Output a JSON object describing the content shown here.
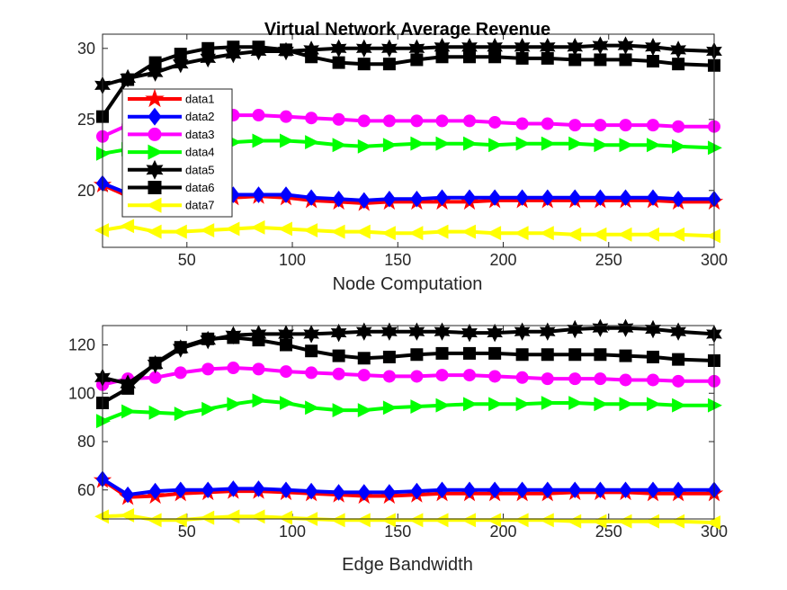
{
  "chart_data": [
    {
      "type": "line",
      "title": "Virtual Network Average Revenue",
      "xlabel": "Node Computation",
      "ylabel": "",
      "xlim": [
        10,
        300
      ],
      "ylim": [
        16,
        31
      ],
      "xticks": [
        50,
        100,
        150,
        200,
        250,
        300
      ],
      "yticks": [
        20,
        25,
        30
      ],
      "legend": "top-left",
      "x": [
        10,
        22,
        35,
        47,
        60,
        72,
        84,
        97,
        109,
        122,
        134,
        146,
        159,
        171,
        184,
        196,
        209,
        221,
        234,
        246,
        258,
        271,
        283,
        300
      ],
      "series": [
        {
          "name": "data1",
          "color": "#ff0000",
          "marker": "star",
          "values": [
            20.4,
            19.6,
            19.4,
            19.4,
            19.4,
            19.5,
            19.6,
            19.5,
            19.3,
            19.2,
            19.1,
            19.2,
            19.2,
            19.2,
            19.2,
            19.3,
            19.3,
            19.3,
            19.3,
            19.3,
            19.3,
            19.3,
            19.2,
            19.2
          ]
        },
        {
          "name": "data2",
          "color": "#0000ff",
          "marker": "diamond",
          "values": [
            20.5,
            19.8,
            19.6,
            19.6,
            19.6,
            19.7,
            19.7,
            19.7,
            19.5,
            19.4,
            19.3,
            19.4,
            19.4,
            19.5,
            19.5,
            19.5,
            19.5,
            19.5,
            19.5,
            19.5,
            19.5,
            19.5,
            19.4,
            19.4
          ]
        },
        {
          "name": "data3",
          "color": "#ff00ff",
          "marker": "circle",
          "values": [
            23.8,
            24.6,
            25.0,
            25.2,
            25.3,
            25.3,
            25.3,
            25.2,
            25.1,
            25.0,
            24.9,
            24.9,
            24.9,
            24.9,
            24.9,
            24.8,
            24.7,
            24.7,
            24.6,
            24.6,
            24.6,
            24.6,
            24.5,
            24.5
          ]
        },
        {
          "name": "data4",
          "color": "#00ff00",
          "marker": "triangle-right",
          "values": [
            22.6,
            22.9,
            23.1,
            23.2,
            23.3,
            23.4,
            23.5,
            23.5,
            23.4,
            23.2,
            23.1,
            23.2,
            23.3,
            23.3,
            23.3,
            23.2,
            23.3,
            23.3,
            23.3,
            23.2,
            23.2,
            23.2,
            23.1,
            23.0
          ]
        },
        {
          "name": "data5",
          "color": "#000000",
          "marker": "hexagram",
          "values": [
            27.4,
            27.9,
            28.3,
            28.9,
            29.3,
            29.6,
            29.8,
            29.8,
            29.9,
            30.0,
            30.0,
            30.0,
            30.0,
            30.1,
            30.1,
            30.1,
            30.1,
            30.1,
            30.1,
            30.2,
            30.2,
            30.1,
            29.9,
            29.8
          ]
        },
        {
          "name": "data6",
          "color": "#000000",
          "marker": "square",
          "values": [
            25.2,
            27.8,
            29.0,
            29.6,
            30.0,
            30.1,
            30.1,
            29.9,
            29.4,
            29.0,
            28.9,
            28.9,
            29.2,
            29.4,
            29.4,
            29.4,
            29.3,
            29.3,
            29.2,
            29.2,
            29.2,
            29.1,
            28.9,
            28.8
          ]
        },
        {
          "name": "data7",
          "color": "#ffff00",
          "marker": "triangle-left",
          "values": [
            17.2,
            17.5,
            17.1,
            17.1,
            17.2,
            17.3,
            17.4,
            17.3,
            17.2,
            17.1,
            17.1,
            17.0,
            17.0,
            17.1,
            17.1,
            17.0,
            17.0,
            17.0,
            16.9,
            16.9,
            16.9,
            16.9,
            16.9,
            16.8
          ]
        }
      ]
    },
    {
      "type": "line",
      "title": "",
      "xlabel": "Edge Bandwidth",
      "ylabel": "",
      "xlim": [
        10,
        300
      ],
      "ylim": [
        48,
        128
      ],
      "xticks": [
        50,
        100,
        150,
        200,
        250,
        300
      ],
      "yticks": [
        60,
        80,
        100,
        120
      ],
      "legend": "none",
      "x": [
        10,
        22,
        35,
        47,
        60,
        72,
        84,
        97,
        109,
        122,
        134,
        146,
        159,
        171,
        184,
        196,
        209,
        221,
        234,
        246,
        258,
        271,
        283,
        300
      ],
      "series": [
        {
          "name": "data1",
          "color": "#ff0000",
          "marker": "star",
          "values": [
            64,
            57,
            57.5,
            58.5,
            59,
            59.5,
            59.5,
            59,
            58.5,
            58,
            57.5,
            57.5,
            58,
            58.5,
            58.5,
            58.5,
            58.5,
            58.5,
            59,
            59,
            59,
            58.5,
            58.5,
            58.5
          ]
        },
        {
          "name": "data2",
          "color": "#0000ff",
          "marker": "diamond",
          "values": [
            64.5,
            58,
            59.5,
            60,
            60,
            60.5,
            60.5,
            60,
            59.5,
            59,
            59,
            59,
            59.5,
            60,
            60,
            60,
            60,
            60,
            60,
            60,
            60,
            60,
            60,
            60
          ]
        },
        {
          "name": "data3",
          "color": "#ff00ff",
          "marker": "circle",
          "values": [
            103.5,
            106,
            106.5,
            108.5,
            110,
            110.5,
            110,
            109,
            108.5,
            108,
            107.5,
            107,
            107,
            107.5,
            107.5,
            107,
            106.5,
            106,
            106,
            106,
            105.5,
            105.5,
            105,
            105
          ]
        },
        {
          "name": "data4",
          "color": "#00ff00",
          "marker": "triangle-right",
          "values": [
            88.5,
            92.5,
            92,
            91.5,
            93.5,
            95.5,
            97,
            96,
            94,
            93,
            93,
            94,
            94.5,
            95,
            95.5,
            95.5,
            95.5,
            96,
            96,
            95.5,
            95.5,
            95.5,
            95,
            95
          ]
        },
        {
          "name": "data5",
          "color": "#000000",
          "marker": "hexagram",
          "values": [
            106.5,
            104,
            112,
            118.5,
            122,
            124,
            124.5,
            124.5,
            124.5,
            125,
            125.5,
            125.5,
            125.5,
            125.5,
            125,
            125,
            125.5,
            125.5,
            126.5,
            127,
            127,
            126.5,
            125.5,
            124.5
          ]
        },
        {
          "name": "data6",
          "color": "#000000",
          "marker": "square",
          "values": [
            96,
            102,
            112.5,
            119,
            122.5,
            123,
            122,
            120,
            117.5,
            115.5,
            114.5,
            115,
            116,
            116.5,
            116.5,
            116.5,
            116,
            116,
            116,
            116,
            115.5,
            115,
            114,
            113.5
          ]
        },
        {
          "name": "data7",
          "color": "#ffff00",
          "marker": "triangle-left",
          "values": [
            49,
            49.5,
            47.5,
            47.5,
            48.5,
            49,
            49,
            48.5,
            48,
            47.5,
            47.5,
            47.5,
            47.5,
            47.5,
            47.5,
            47.5,
            47.5,
            47.5,
            47,
            47,
            47,
            47,
            47,
            46.5
          ]
        }
      ]
    }
  ]
}
